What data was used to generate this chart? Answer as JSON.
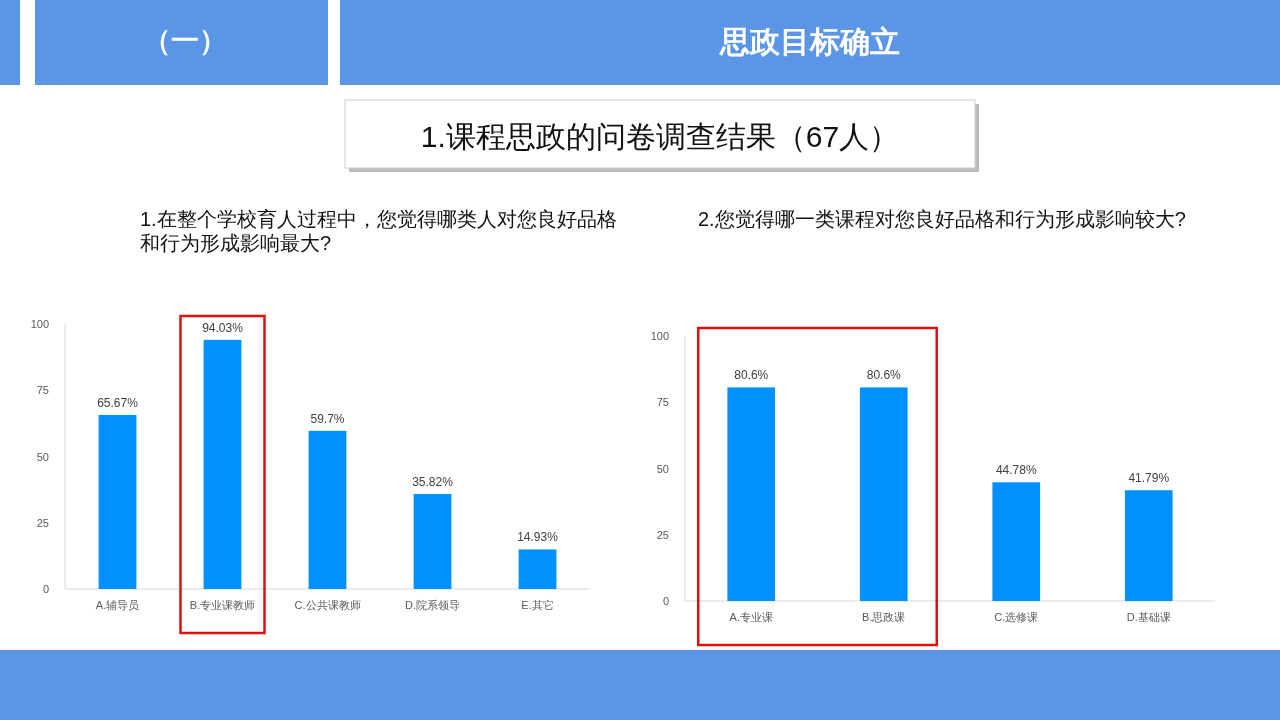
{
  "chart_data": [
    {
      "type": "bar",
      "title": "1.在整个学校育人过程中，您觉得哪类人对您良好品格和行为形成影响最大?",
      "annotations": [
        "（一）",
        "思政目标确立",
        "1.课程思政的问卷调查结果（67人）"
      ],
      "categories": [
        "A.辅导员",
        "B.专业课教师",
        "C.公共课教师",
        "D.院系领导",
        "E.其它"
      ],
      "values": [
        65.67,
        94.03,
        59.7,
        35.82,
        14.93
      ],
      "value_labels": [
        "65.67%",
        "94.03%",
        "59.7%",
        "35.82%",
        "14.93%"
      ],
      "color": "#0091ff",
      "ylim": [
        0,
        100
      ],
      "yticks": [
        0,
        25,
        50,
        75,
        100
      ]
    },
    {
      "type": "bar",
      "title": "2.您觉得哪一类课程对您良好品格和行为形成影响较大?",
      "categories": [
        "A.专业课",
        "B.思政课",
        "C.选修课",
        "D.基础课"
      ],
      "values": [
        80.6,
        80.6,
        44.78,
        41.79
      ],
      "value_labels": [
        "80.6%",
        "80.6%",
        "44.78%",
        "41.79%"
      ],
      "color": "#0091ff",
      "ylim": [
        0,
        100
      ],
      "yticks": [
        0,
        25,
        50,
        75,
        100
      ]
    }
  ]
}
